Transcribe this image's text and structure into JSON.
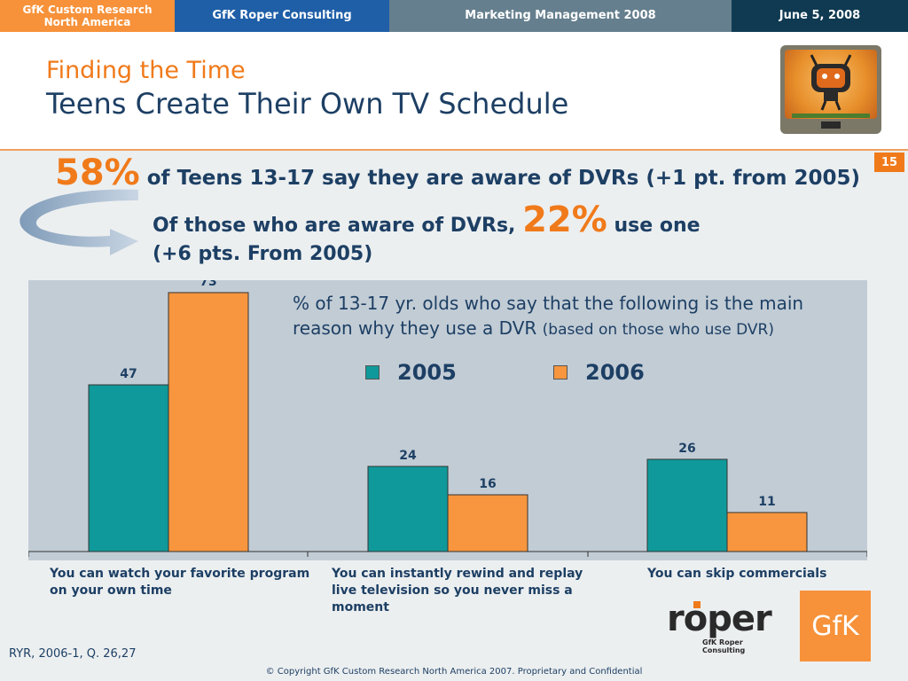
{
  "topbar": {
    "org_line1": "GfK Custom Research",
    "org_line2": "North America",
    "company": "GfK Roper Consulting",
    "event": "Marketing Management 2008",
    "date": "June 5, 2008"
  },
  "header": {
    "kicker": "Finding the Time",
    "title": "Teens Create Their Own TV Schedule",
    "page_number": "15"
  },
  "headline1": {
    "pct": "58%",
    "text": " of Teens 13-17 say they are aware of DVRs (+1 pt. from 2005)"
  },
  "headline2": {
    "prefix": "Of those who are aware of DVRs, ",
    "pct": "22%",
    "suffix": " use one",
    "line2": "(+6 pts. From 2005)"
  },
  "chart_data": {
    "type": "bar",
    "title": "% of 13-17 yr. olds who say that the following is the main reason why they use a DVR",
    "title_note": "(based on those who use DVR)",
    "categories": [
      "You can watch your favorite program on your own time",
      "You can instantly rewind and replay live television so you never miss a moment",
      "You can skip commercials"
    ],
    "series": [
      {
        "name": "2005",
        "color": "#10999a",
        "values": [
          47,
          24,
          26
        ]
      },
      {
        "name": "2006",
        "color": "#f7963e",
        "values": [
          73,
          16,
          11
        ]
      }
    ],
    "ylim": [
      0,
      100
    ],
    "grid": false,
    "legend_position": "top-right"
  },
  "footer": {
    "source": "RYR, 2006-1, Q. 26,27",
    "copyright": "© Copyright GfK Custom Research North America 2007.  Proprietary and Confidential"
  },
  "logos": {
    "roper_word": "roper",
    "roper_sub": "GfK Roper Consulting",
    "gfk_word": "GfK"
  }
}
